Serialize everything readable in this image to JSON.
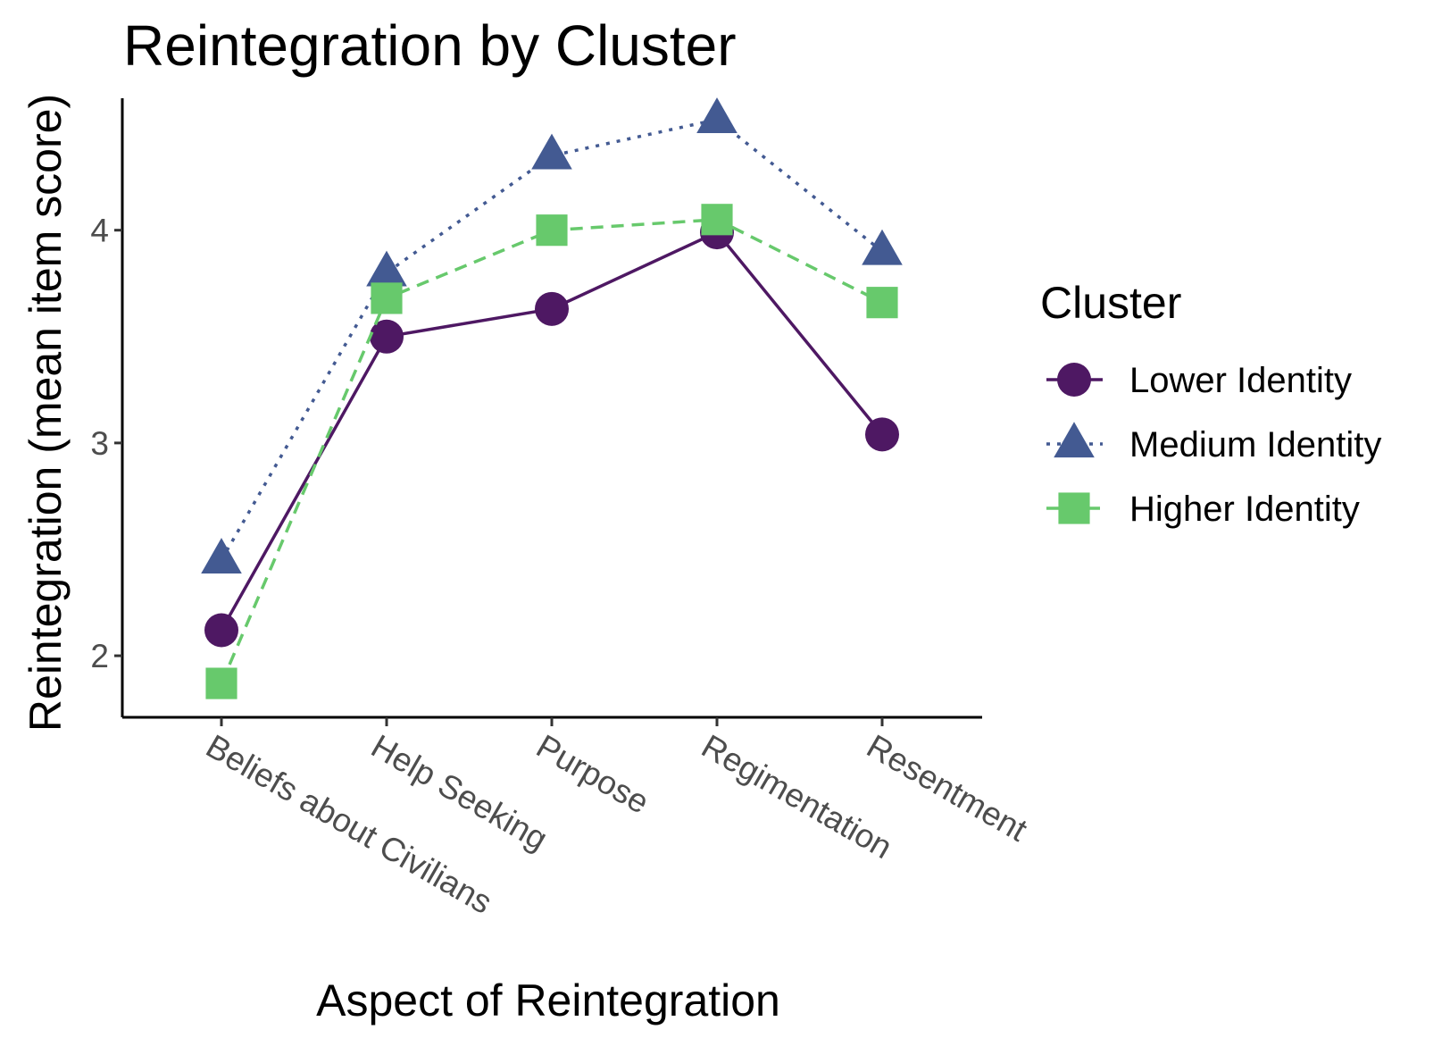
{
  "chart_data": {
    "type": "line",
    "title": "Reintegration by Cluster",
    "xlabel": "Aspect of Reintegration",
    "ylabel": "Reintegration (mean item score)",
    "categories": [
      "Beliefs about Civilians",
      "Help Seeking",
      "Purpose",
      "Regimentation",
      "Resentment"
    ],
    "yticks": [
      2,
      3,
      4
    ],
    "ylim": [
      1.73,
      4.62
    ],
    "grid": false,
    "legend": {
      "title": "Cluster",
      "position": "right"
    },
    "series": [
      {
        "name": "Lower Identity",
        "values": [
          2.12,
          3.5,
          3.63,
          3.99,
          3.04
        ],
        "color": "#4e1863",
        "marker": "circle",
        "line_style": "solid"
      },
      {
        "name": "Medium Identity",
        "values": [
          2.45,
          3.8,
          4.35,
          4.52,
          3.9
        ],
        "color": "#435a92",
        "marker": "triangle",
        "line_style": "dotted"
      },
      {
        "name": "Higher Identity",
        "values": [
          1.87,
          3.68,
          4.0,
          4.05,
          3.66
        ],
        "color": "#67c96c",
        "marker": "square",
        "line_style": "dashed"
      }
    ]
  }
}
